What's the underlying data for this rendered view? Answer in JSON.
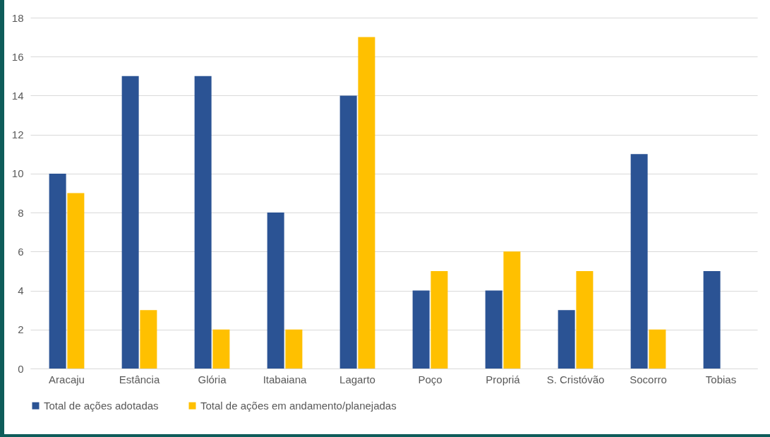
{
  "chart_data": {
    "type": "bar",
    "categories": [
      "Aracaju",
      "Estância",
      "Glória",
      "Itabaiana",
      "Lagarto",
      "Poço",
      "Propriá",
      "S. Cristóvão",
      "Socorro",
      "Tobias"
    ],
    "series": [
      {
        "name": "Total de ações adotadas",
        "color": "#2b5394",
        "values": [
          10,
          15,
          15,
          8,
          14,
          4,
          4,
          3,
          11,
          5
        ]
      },
      {
        "name": "Total de ações em andamento/planejadas",
        "color": "#ffc000",
        "values": [
          9,
          3,
          2,
          2,
          17,
          5,
          6,
          5,
          2,
          null
        ]
      }
    ],
    "ylim": [
      0,
      18
    ],
    "yticks": [
      0,
      2,
      4,
      6,
      8,
      10,
      12,
      14,
      16,
      18
    ],
    "grid": "y",
    "legend": "bottom"
  }
}
